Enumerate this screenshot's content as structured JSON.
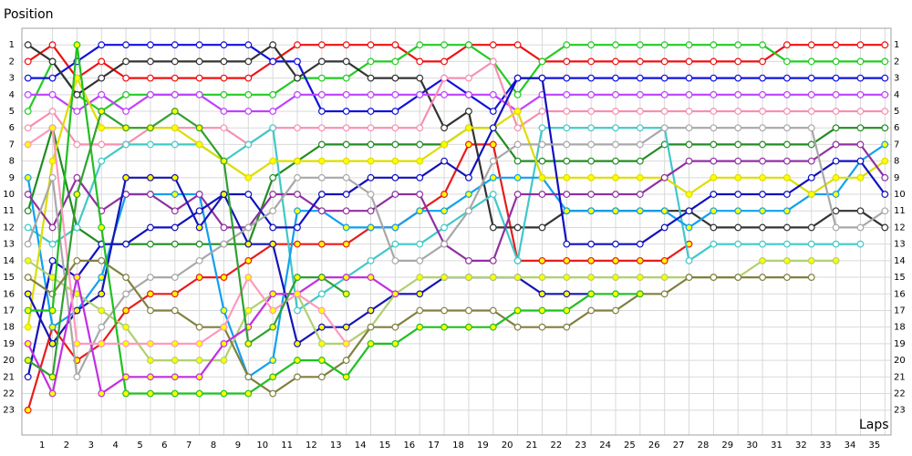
{
  "chart_data": {
    "type": "line",
    "y_label": "Position",
    "x_label": "Laps",
    "x": [
      0,
      1,
      2,
      3,
      4,
      5,
      6,
      7,
      8,
      9,
      10,
      11,
      12,
      13,
      14,
      15,
      16,
      17,
      18,
      19,
      20,
      21,
      22,
      23,
      24,
      25,
      26,
      27,
      28,
      29,
      30,
      31,
      32,
      33,
      34,
      35
    ],
    "xlim": [
      -0.25,
      35.25
    ],
    "ylim": [
      0,
      24.5
    ],
    "y_inverted": true,
    "grid": true,
    "xticks": [
      1,
      2,
      3,
      4,
      5,
      6,
      7,
      8,
      9,
      10,
      11,
      12,
      13,
      14,
      15,
      16,
      17,
      18,
      19,
      20,
      21,
      22,
      23,
      24,
      25,
      26,
      27,
      28,
      29,
      30,
      31,
      32,
      33,
      34,
      35
    ],
    "yticks": [
      1,
      2,
      3,
      4,
      5,
      6,
      7,
      8,
      9,
      10,
      11,
      12,
      13,
      14,
      15,
      16,
      17,
      18,
      19,
      20,
      21,
      22,
      23
    ],
    "series": [
      {
        "color": "#ee1111",
        "values": [
          2,
          1,
          3,
          2,
          3,
          3,
          3,
          3,
          3,
          3,
          2,
          1,
          1,
          1,
          1,
          1,
          2,
          2,
          1,
          1,
          1,
          2,
          2,
          2,
          2,
          2,
          2,
          2,
          2,
          2,
          2,
          1,
          1,
          1,
          1,
          1
        ]
      },
      {
        "color": "#e81c1c",
        "marker_color": "#ffff00",
        "values": [
          23,
          18,
          20,
          19,
          17,
          16,
          16,
          15,
          15,
          14,
          13,
          13,
          13,
          13,
          12,
          12,
          11,
          10,
          7,
          7,
          14,
          14,
          14,
          14,
          14,
          14,
          14,
          13,
          null,
          null,
          null,
          null,
          null,
          null,
          null,
          null
        ]
      },
      {
        "color": "#22cc22",
        "values": [
          5,
          2,
          4,
          5,
          4,
          4,
          4,
          4,
          4,
          4,
          4,
          3,
          3,
          3,
          2,
          2,
          1,
          1,
          1,
          2,
          4,
          2,
          1,
          1,
          1,
          1,
          1,
          1,
          1,
          1,
          1,
          2,
          2,
          2,
          2,
          2
        ]
      },
      {
        "color": "#1111dd",
        "values": [
          3,
          3,
          2,
          1,
          1,
          1,
          1,
          1,
          1,
          1,
          2,
          2,
          5,
          5,
          5,
          5,
          4,
          3,
          4,
          5,
          3,
          3,
          3,
          3,
          3,
          3,
          3,
          3,
          3,
          3,
          3,
          3,
          3,
          3,
          3,
          3
        ]
      },
      {
        "color": "#333333",
        "values": [
          1,
          2,
          4,
          3,
          2,
          2,
          2,
          2,
          2,
          2,
          1,
          3,
          2,
          2,
          3,
          3,
          3,
          6,
          5,
          12,
          12,
          12,
          11,
          11,
          11,
          11,
          11,
          11,
          12,
          12,
          12,
          12,
          12,
          11,
          11,
          12
        ]
      },
      {
        "color": "#c040ff",
        "values": [
          4,
          4,
          5,
          4,
          5,
          4,
          4,
          4,
          5,
          5,
          5,
          4,
          4,
          4,
          4,
          4,
          4,
          4,
          4,
          4,
          5,
          4,
          4,
          4,
          4,
          4,
          4,
          4,
          4,
          4,
          4,
          4,
          4,
          4,
          4,
          4
        ]
      },
      {
        "color": "#f590b0",
        "values": [
          6,
          5,
          7,
          7,
          7,
          6,
          6,
          6,
          6,
          7,
          6,
          6,
          6,
          6,
          6,
          6,
          6,
          3,
          3,
          2,
          6,
          5,
          5,
          5,
          5,
          5,
          5,
          5,
          5,
          5,
          5,
          5,
          5,
          5,
          5,
          5
        ]
      },
      {
        "color": "#228b22",
        "values": [
          11,
          6,
          12,
          13,
          13,
          13,
          13,
          13,
          13,
          13,
          9,
          8,
          7,
          7,
          7,
          7,
          7,
          7,
          6,
          6,
          8,
          8,
          8,
          8,
          8,
          8,
          7,
          7,
          7,
          7,
          7,
          7,
          7,
          6,
          6,
          6
        ]
      },
      {
        "color": "#40c8c8",
        "values": [
          12,
          13,
          12,
          8,
          7,
          7,
          7,
          7,
          8,
          7,
          6,
          17,
          16,
          15,
          14,
          13,
          13,
          12,
          11,
          10,
          14,
          6,
          6,
          6,
          6,
          6,
          6,
          14,
          13,
          13,
          13,
          13,
          13,
          13,
          13,
          null
        ]
      },
      {
        "color": "#10a0f0",
        "marker_color": "#ffff00",
        "values": [
          9,
          18,
          17,
          15,
          10,
          10,
          10,
          10,
          17,
          21,
          20,
          11,
          11,
          12,
          12,
          12,
          11,
          11,
          10,
          9,
          9,
          9,
          11,
          11,
          11,
          11,
          11,
          12,
          11,
          11,
          11,
          11,
          10,
          10,
          8,
          7
        ]
      },
      {
        "color": "#dddd00",
        "marker_color": "#ffff00",
        "values": [
          18,
          8,
          3,
          6,
          6,
          6,
          6,
          7,
          8,
          9,
          8,
          8,
          8,
          8,
          8,
          8,
          8,
          7,
          6,
          6,
          5,
          9,
          9,
          9,
          9,
          9,
          9,
          10,
          9,
          9,
          9,
          9,
          10,
          9,
          9,
          8
        ]
      },
      {
        "color": "#9030a0",
        "values": [
          10,
          12,
          9,
          11,
          10,
          10,
          11,
          10,
          12,
          12,
          10,
          10,
          11,
          11,
          11,
          10,
          10,
          13,
          14,
          14,
          10,
          10,
          10,
          10,
          10,
          10,
          9,
          8,
          8,
          8,
          8,
          8,
          8,
          7,
          7,
          9
        ]
      },
      {
        "color": "#1010c0",
        "values": [
          21,
          14,
          15,
          13,
          13,
          12,
          12,
          11,
          10,
          10,
          12,
          12,
          10,
          10,
          9,
          9,
          9,
          8,
          9,
          6,
          3,
          3,
          13,
          13,
          13,
          13,
          12,
          11,
          10,
          10,
          10,
          10,
          9,
          8,
          8,
          10
        ]
      },
      {
        "color": "#1515b5",
        "marker_color": "#ffff00",
        "values": [
          16,
          19,
          17,
          16,
          9,
          9,
          9,
          12,
          10,
          13,
          13,
          19,
          18,
          18,
          17,
          16,
          16,
          15,
          15,
          15,
          15,
          16,
          16,
          16,
          null,
          null,
          null,
          null,
          null,
          null,
          null,
          null,
          null,
          null,
          null,
          null
        ]
      },
      {
        "color": "#a8a8a8",
        "values": [
          13,
          9,
          21,
          18,
          16,
          15,
          15,
          14,
          13,
          12,
          11,
          9,
          9,
          9,
          10,
          14,
          14,
          13,
          11,
          8,
          7,
          7,
          7,
          7,
          7,
          7,
          6,
          6,
          6,
          6,
          6,
          6,
          6,
          12,
          12,
          11
        ]
      },
      {
        "color": "#b0d070",
        "marker_color": "#ffff00",
        "values": [
          14,
          15,
          16,
          17,
          18,
          20,
          20,
          20,
          20,
          17,
          16,
          16,
          19,
          19,
          18,
          16,
          15,
          15,
          15,
          15,
          15,
          15,
          15,
          15,
          15,
          15,
          15,
          15,
          15,
          15,
          14,
          14,
          14,
          14,
          null,
          null
        ]
      },
      {
        "color": "#808040",
        "values": [
          15,
          16,
          14,
          14,
          15,
          17,
          17,
          18,
          18,
          21,
          22,
          21,
          21,
          20,
          18,
          18,
          17,
          17,
          17,
          17,
          18,
          18,
          18,
          17,
          17,
          16,
          16,
          15,
          15,
          15,
          15,
          15,
          15,
          null,
          null,
          null
        ]
      },
      {
        "color": "#20c020",
        "marker_color": "#ffff00",
        "values": [
          17,
          17,
          1,
          12,
          22,
          22,
          22,
          22,
          22,
          22,
          21,
          20,
          20,
          21,
          19,
          19,
          18,
          18,
          18,
          18,
          17,
          17,
          17,
          16,
          16,
          16,
          null,
          null,
          null,
          null,
          null,
          null,
          null,
          null,
          null,
          null
        ]
      },
      {
        "color": "#c030e0",
        "marker_color": "#ffff00",
        "values": [
          19,
          22,
          15,
          22,
          21,
          21,
          21,
          21,
          19,
          18,
          16,
          16,
          15,
          15,
          15,
          16,
          null,
          null,
          null,
          null,
          null,
          null,
          null,
          null,
          null,
          null,
          null,
          null,
          null,
          null,
          null,
          null,
          null,
          null,
          null,
          null
        ]
      },
      {
        "color": "#ff99bb",
        "marker_color": "#ffff00",
        "values": [
          7,
          6,
          19,
          19,
          19,
          19,
          19,
          19,
          18,
          15,
          17,
          16,
          17,
          19,
          null,
          null,
          null,
          null,
          null,
          null,
          null,
          null,
          null,
          null,
          null,
          null,
          null,
          null,
          null,
          null,
          null,
          null,
          null,
          null,
          null,
          null
        ]
      },
      {
        "color": "#30a030",
        "marker_color": "#ffff00",
        "values": [
          20,
          21,
          10,
          5,
          6,
          6,
          5,
          6,
          8,
          19,
          18,
          15,
          15,
          16,
          null,
          null,
          null,
          null,
          null,
          null,
          null,
          null,
          null,
          null,
          null,
          null,
          null,
          null,
          null,
          null,
          null,
          null,
          null,
          null,
          null,
          null
        ]
      }
    ]
  }
}
